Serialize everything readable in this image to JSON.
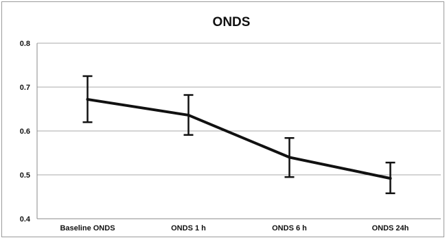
{
  "chart_data": {
    "type": "line",
    "title": "ONDS",
    "categories": [
      "Baseline ONDS",
      "ONDS 1 h",
      "ONDS 6 h",
      "ONDS 24h"
    ],
    "series": [
      {
        "values": [
          0.672,
          0.636,
          0.54,
          0.492
        ],
        "error_low": [
          0.62,
          0.591,
          0.495,
          0.458
        ],
        "error_high": [
          0.725,
          0.682,
          0.584,
          0.528
        ],
        "color": "#111111"
      }
    ],
    "yticks": [
      "0.4",
      "0.5",
      "0.6",
      "0.7",
      "0.8"
    ],
    "ylim": [
      0.4,
      0.8
    ],
    "grid": true,
    "legend": "none"
  }
}
